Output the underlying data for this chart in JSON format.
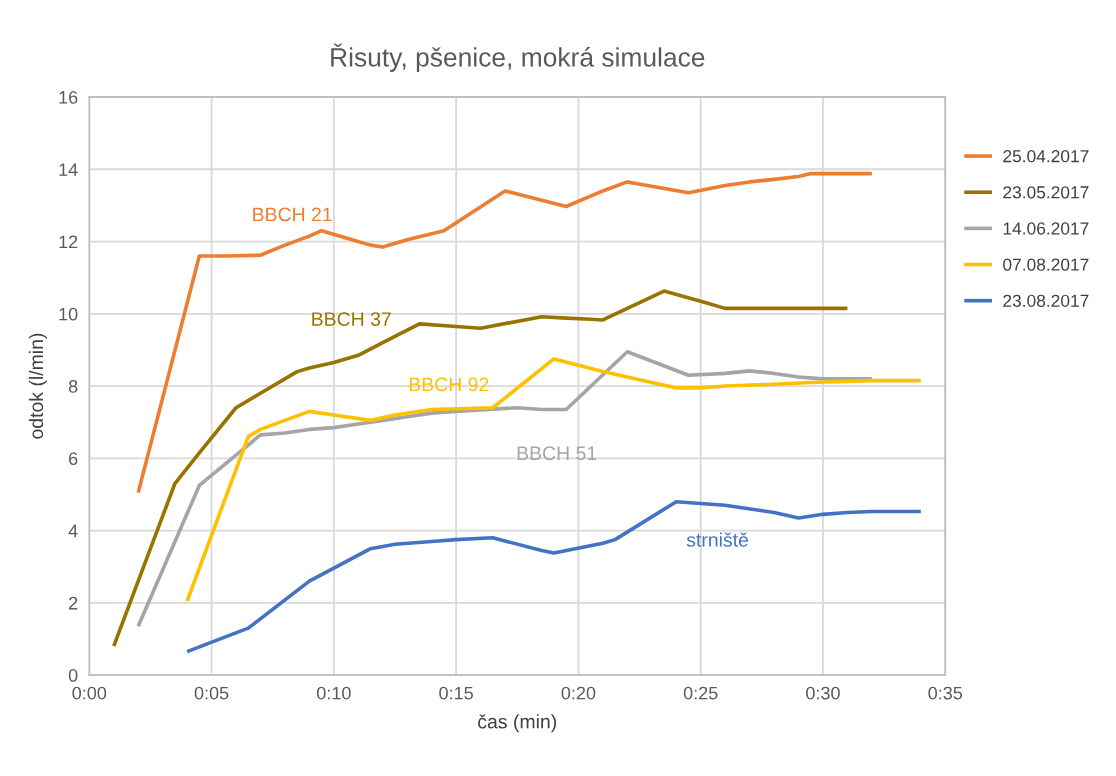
{
  "chart_data": {
    "type": "line",
    "title": "Řisuty, pšenice, mokrá simulace",
    "xlabel": "čas (min)",
    "ylabel": "odtok (l/min)",
    "xlim": [
      0,
      35
    ],
    "xticks": [
      {
        "value": 0,
        "label": "0:00"
      },
      {
        "value": 5,
        "label": "0:05"
      },
      {
        "value": 10,
        "label": "0:10"
      },
      {
        "value": 15,
        "label": "0:15"
      },
      {
        "value": 20,
        "label": "0:20"
      },
      {
        "value": 25,
        "label": "0:25"
      },
      {
        "value": 30,
        "label": "0:30"
      },
      {
        "value": 35,
        "label": "0:35"
      }
    ],
    "ylim": [
      0,
      16
    ],
    "yticks": [
      0,
      2,
      4,
      6,
      8,
      10,
      12,
      14,
      16
    ],
    "grid": true,
    "legend": "right",
    "marker": "none",
    "line_style": "solid",
    "series": [
      {
        "name": "25.04.2017",
        "color": "#ed7d31",
        "x": [
          2,
          4.5,
          5.5,
          7,
          8,
          9,
          9.5,
          10.5,
          11.5,
          12,
          13,
          14.5,
          17,
          19.5,
          21,
          22,
          24.5,
          26,
          27,
          28,
          29,
          29.5,
          32
        ],
        "values": [
          5.05,
          11.6,
          11.6,
          11.62,
          11.9,
          12.15,
          12.3,
          12.1,
          11.9,
          11.85,
          12.05,
          12.3,
          13.4,
          12.97,
          13.4,
          13.65,
          13.35,
          13.55,
          13.65,
          13.72,
          13.8,
          13.88,
          13.88
        ]
      },
      {
        "name": "23.05.2017",
        "color": "#997300",
        "x": [
          1,
          2,
          3.5,
          4.5,
          6,
          7,
          8.5,
          9,
          10,
          11,
          12,
          13.5,
          15,
          16,
          18.5,
          19.5,
          20.5,
          21,
          23.5,
          25,
          26,
          31
        ],
        "values": [
          0.8,
          2.6,
          5.3,
          6.15,
          7.4,
          7.8,
          8.4,
          8.5,
          8.65,
          8.85,
          9.2,
          9.72,
          9.65,
          9.6,
          9.92,
          9.88,
          9.85,
          9.83,
          10.63,
          10.35,
          10.15,
          10.15
        ]
      },
      {
        "name": "14.06.2017",
        "color": "#a5a5a5",
        "x": [
          2,
          4.5,
          7,
          8,
          9,
          10,
          11,
          12,
          13,
          14,
          15,
          17.5,
          18.5,
          19.5,
          22,
          24.5,
          26,
          27,
          28,
          29,
          30,
          32
        ],
        "values": [
          1.35,
          5.25,
          6.65,
          6.7,
          6.8,
          6.85,
          6.95,
          7.05,
          7.15,
          7.25,
          7.3,
          7.4,
          7.35,
          7.35,
          8.95,
          8.3,
          8.35,
          8.42,
          8.35,
          8.25,
          8.2,
          8.2
        ]
      },
      {
        "name": "07.08.2017",
        "color": "#ffc000",
        "x": [
          4,
          6.5,
          7,
          9,
          10,
          11.5,
          12.5,
          14,
          16.5,
          19,
          21,
          23,
          24,
          25,
          26,
          28,
          29.5,
          32,
          34
        ],
        "values": [
          2.05,
          6.6,
          6.8,
          7.3,
          7.2,
          7.05,
          7.2,
          7.35,
          7.4,
          8.75,
          8.4,
          8.1,
          7.95,
          7.95,
          8.0,
          8.05,
          8.1,
          8.15,
          8.15
        ]
      },
      {
        "name": "23.08.2017",
        "color": "#4472c4",
        "x": [
          4,
          6.5,
          9,
          11.5,
          12.5,
          14,
          15,
          16.5,
          18.5,
          19,
          21,
          21.5,
          24,
          25,
          26,
          28,
          29,
          30,
          31,
          32,
          34
        ],
        "values": [
          0.65,
          1.3,
          2.6,
          3.5,
          3.62,
          3.7,
          3.75,
          3.8,
          3.45,
          3.38,
          3.65,
          3.75,
          4.8,
          4.75,
          4.7,
          4.5,
          4.35,
          4.45,
          4.5,
          4.53,
          4.53
        ]
      }
    ],
    "annotations": [
      "BBCH 21",
      "BBCH 37",
      "BBCH 51",
      "BBCH 92",
      "strniště"
    ]
  }
}
